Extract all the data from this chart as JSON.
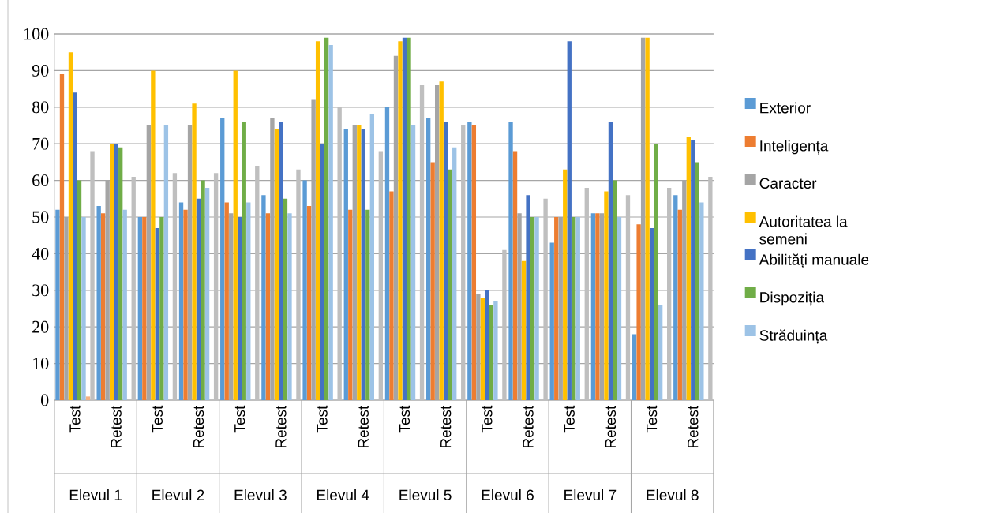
{
  "chart_data": {
    "type": "bar",
    "categories": [
      "Test",
      "Retest",
      "Test",
      "Retest",
      "Test",
      "Retest",
      "Test",
      "Retest",
      "Test",
      "Retest",
      "Test",
      "Retest",
      "Test",
      "Retest",
      "Test",
      "Retest"
    ],
    "series": [
      {
        "name": "Exterior",
        "color": "#5b9bd5",
        "values": [
          52,
          53,
          50,
          54,
          77,
          56,
          60,
          74,
          80,
          77,
          76,
          76,
          43,
          51,
          18,
          56
        ]
      },
      {
        "name": "Inteligența",
        "color": "#ed7d31",
        "values": [
          89,
          51,
          50,
          52,
          54,
          51,
          53,
          52,
          57,
          65,
          75,
          68,
          50,
          51,
          48,
          52
        ]
      },
      {
        "name": "Caracter",
        "color": "#a5a5a5",
        "values": [
          50,
          60,
          75,
          75,
          51,
          77,
          82,
          75,
          94,
          86,
          29,
          51,
          50,
          51,
          99,
          60
        ]
      },
      {
        "name": "Autoritatea la semeni",
        "color": "#ffc000",
        "values": [
          95,
          70,
          90,
          81,
          90,
          74,
          98,
          75,
          98,
          87,
          28,
          38,
          63,
          57,
          99,
          72
        ]
      },
      {
        "name": "Abilități manuale",
        "color": "#4472c4",
        "values": [
          84,
          70,
          47,
          55,
          50,
          76,
          70,
          74,
          99,
          76,
          30,
          56,
          98,
          76,
          47,
          71
        ]
      },
      {
        "name": "Dispoziția",
        "color": "#70ad47",
        "values": [
          60,
          69,
          50,
          60,
          76,
          55,
          99,
          52,
          99,
          63,
          26,
          50,
          50,
          60,
          70,
          65
        ]
      },
      {
        "name": "Străduința",
        "color": "#9dc3e6",
        "values": [
          50,
          52,
          75,
          58,
          54,
          51,
          97,
          78,
          75,
          69,
          27,
          50,
          50,
          50,
          26,
          54
        ]
      },
      {
        "color": "#f4b183",
        "values": [
          1,
          null,
          null,
          null,
          null,
          null,
          null,
          null,
          null,
          null,
          null,
          null,
          null,
          null,
          null,
          null
        ]
      },
      {
        "color": "#bfbfbf",
        "values": [
          68,
          61,
          62,
          62,
          64,
          63,
          80,
          68,
          86,
          75,
          41,
          55,
          58,
          56,
          58,
          61
        ]
      }
    ],
    "annotations": [
      "Elevul 1",
      "Elevul 2",
      "Elevul 3",
      "Elevul 4",
      "Elevul 5",
      "Elevul 6",
      "Elevul 7",
      "Elevul 8"
    ],
    "ylim": [
      0,
      100
    ],
    "yticks": [
      0,
      10,
      20,
      30,
      40,
      50,
      60,
      70,
      80,
      90,
      100
    ],
    "grid": "y",
    "legend": "right"
  }
}
